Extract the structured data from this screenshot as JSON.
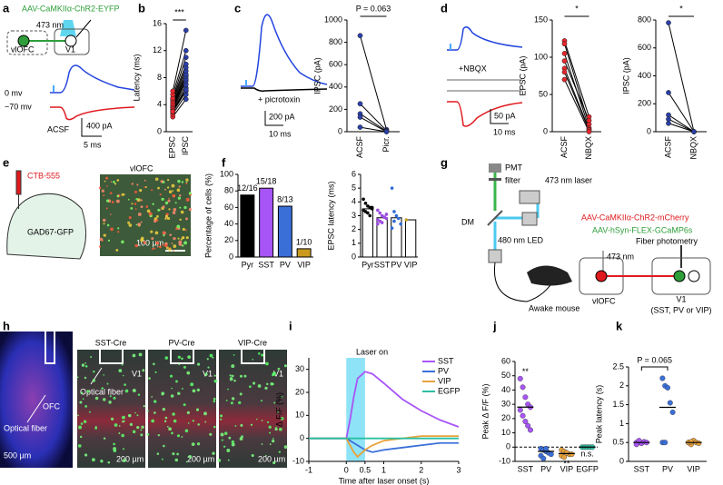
{
  "panel_labels": [
    "a",
    "b",
    "c",
    "d",
    "e",
    "f",
    "g",
    "h",
    "i",
    "j",
    "k"
  ],
  "figure_text": {
    "a": {
      "virus": "AAV-CaMKIIα-ChR2-EYFP",
      "light": "473 nm",
      "source": "vlOFC",
      "target": "V1",
      "v0": "0 mv",
      "v70": "−70 mv",
      "condition": "ACSF",
      "scale_y": "400 pA",
      "scale_x": "5 ms"
    },
    "c": {
      "drug": "+ picrotoxin",
      "scale_y": "200 pA",
      "scale_x": "10 ms"
    },
    "d": {
      "drug": "+NBQX",
      "scale_y": "50 pA",
      "scale_x": "10 ms"
    },
    "e": {
      "tracer": "CTB-555",
      "mouse": "GAD67-GFP",
      "region": "vlOFC",
      "scale": "100 µm"
    },
    "g": {
      "pmt": "PMT",
      "filter": "filter",
      "laser": "473 nm laser",
      "dm": "DM",
      "led": "480 nm LED",
      "mouse": "Awake mouse",
      "virus1": "AAV-CaMKIIα-ChR2-mCherry",
      "virus2": "AAV-hSyn-FLEX-GCaMP6s",
      "method": "Fiber photometry",
      "light": "473 nm",
      "source": "vlOFC",
      "target": "V1",
      "cells": "(SST, PV or VIP)"
    },
    "h": {
      "region": "OFC",
      "fiber": "Optical fiber",
      "scale_big": "500 µm",
      "lines": [
        "SST-Cre",
        "PV-Cre",
        "VIP-Cre"
      ],
      "area": [
        "V1",
        "V1",
        "V1"
      ],
      "fiber2": "Optical fiber",
      "scale_small": [
        "200 µm",
        "200 µm",
        "200 µm"
      ]
    }
  },
  "chart_data": [
    {
      "type": "line",
      "y_label": "Latency (ms)",
      "annotation": "***",
      "categories": [
        "EPSC",
        "IPSC"
      ],
      "marker_colors": [
        "#e8262b",
        "#2b3fa8"
      ],
      "line_color": "#000000",
      "ylim": [
        0,
        16
      ],
      "yticks": [
        0,
        4,
        8,
        12,
        16
      ],
      "series": [
        {
          "values": [
            2.2,
            4.8
          ]
        },
        {
          "values": [
            2.6,
            5.5
          ]
        },
        {
          "values": [
            2.9,
            6.0
          ]
        },
        {
          "values": [
            3.1,
            6.5
          ]
        },
        {
          "values": [
            3.3,
            7.0
          ]
        },
        {
          "values": [
            3.5,
            7.5
          ]
        },
        {
          "values": [
            3.6,
            7.8
          ]
        },
        {
          "values": [
            3.8,
            8.2
          ]
        },
        {
          "values": [
            4.0,
            8.5
          ]
        },
        {
          "values": [
            4.2,
            9.0
          ]
        },
        {
          "values": [
            4.5,
            9.5
          ]
        },
        {
          "values": [
            4.8,
            10.0
          ]
        },
        {
          "values": [
            5.0,
            11.0
          ]
        },
        {
          "values": [
            5.5,
            12.0
          ]
        },
        {
          "values": [
            6.0,
            15.0
          ]
        },
        {
          "values": [
            3.0,
            6.2
          ]
        }
      ]
    },
    {
      "type": "line",
      "y_label": "IPSC (pA)",
      "annotation": "P = 0.063",
      "categories": [
        "ACSF",
        "Picr."
      ],
      "marker_colors": [
        "#2b3fa8",
        "#2b3fa8"
      ],
      "line_color": "#000000",
      "ylim": [
        0,
        1000
      ],
      "yticks": [
        0,
        200,
        400,
        600,
        800,
        1000
      ],
      "series": [
        {
          "values": [
            860,
            20
          ]
        },
        {
          "values": [
            250,
            10
          ]
        },
        {
          "values": [
            160,
            5
          ]
        },
        {
          "values": [
            130,
            0
          ]
        },
        {
          "values": [
            40,
            0
          ]
        }
      ]
    },
    {
      "type": "line",
      "y_label": "EPSC (pA)",
      "annotation": "*",
      "categories": [
        "ACSF",
        "NBQX"
      ],
      "marker_colors": [
        "#e8262b",
        "#e8262b"
      ],
      "line_color": "#000000",
      "ylim": [
        0,
        150
      ],
      "yticks": [
        0,
        50,
        100,
        150
      ],
      "series": [
        {
          "values": [
            122,
            20
          ]
        },
        {
          "values": [
            118,
            10
          ]
        },
        {
          "values": [
            105,
            5
          ]
        },
        {
          "values": [
            95,
            15
          ]
        },
        {
          "values": [
            85,
            3
          ]
        },
        {
          "values": [
            80,
            2
          ]
        },
        {
          "values": [
            70,
            0
          ]
        }
      ]
    },
    {
      "type": "line",
      "y_label": "IPSC (pA)",
      "annotation": "*",
      "categories": [
        "ACSF",
        "NBQX"
      ],
      "marker_colors": [
        "#2b3fa8",
        "#2b3fa8"
      ],
      "line_color": "#000000",
      "ylim": [
        0,
        800
      ],
      "yticks": [
        0,
        200,
        400,
        600,
        800
      ],
      "series": [
        {
          "values": [
            780,
            0
          ]
        },
        {
          "values": [
            280,
            0
          ]
        },
        {
          "values": [
            120,
            0
          ]
        },
        {
          "values": [
            90,
            0
          ]
        },
        {
          "values": [
            60,
            0
          ]
        }
      ]
    },
    {
      "type": "bar",
      "y_label": "Percentage of cells (%)",
      "categories": [
        "Pyr",
        "SST",
        "PV",
        "VIP"
      ],
      "values": [
        75,
        83.3,
        61.5,
        10
      ],
      "colors": [
        "#000000",
        "#a855f7",
        "#3a6fd8",
        "#c99a1e"
      ],
      "annotations": [
        "12/16",
        "15/18",
        "8/13",
        "1/10"
      ],
      "ylim": [
        0,
        100
      ],
      "yticks": [
        0,
        20,
        40,
        60,
        80,
        100
      ]
    },
    {
      "type": "bar",
      "y_label": "EPSC latency (ms)",
      "categories": [
        "Pyr",
        "SST",
        "PV",
        "VIP"
      ],
      "values": [
        3.5,
        2.85,
        2.85,
        2.7
      ],
      "colors": [
        "#000000",
        "#9b4de0",
        "#2f6bd6",
        "#c8a02a"
      ],
      "points": [
        [
          4.2,
          3.9,
          3.7,
          3.6,
          3.5,
          3.4,
          3.3,
          3.2,
          3.0,
          3.6
        ],
        [
          3.4,
          3.2,
          3.0,
          2.9,
          2.8,
          2.7,
          2.6,
          2.5,
          2.9,
          3.1,
          2.4
        ],
        [
          5.0,
          3.3,
          3.0,
          2.8,
          2.4,
          2.1,
          2.6
        ],
        [
          2.7
        ]
      ],
      "ylim": [
        0,
        6
      ],
      "yticks": [
        0,
        1,
        2,
        3,
        4,
        5,
        6
      ]
    },
    {
      "type": "line",
      "y_label": "Δ F/F (%)",
      "x_label": "Time after laser onset (s)",
      "shade_label": "Laser on",
      "shade": [
        0,
        0.5
      ],
      "x": [
        -1,
        -0.5,
        0,
        0.1,
        0.2,
        0.3,
        0.5,
        0.7,
        1,
        1.5,
        2,
        2.5,
        3
      ],
      "series": [
        {
          "name": "SST",
          "color": "#a855f7",
          "values": [
            0,
            0,
            0,
            8,
            18,
            26,
            29,
            28,
            24,
            17,
            12,
            8,
            5
          ]
        },
        {
          "name": "PV",
          "color": "#3a6fd8",
          "values": [
            0,
            0,
            0,
            -1,
            -2,
            -3,
            -5,
            -6,
            -5,
            -4,
            -3,
            -2,
            -2
          ]
        },
        {
          "name": "VIP",
          "color": "#e8a23a",
          "values": [
            0,
            0,
            0,
            -3,
            -6,
            -8,
            -5,
            -3,
            -1,
            0,
            1,
            1,
            1
          ]
        },
        {
          "name": "EGFP",
          "color": "#2bbfa0",
          "values": [
            0,
            0,
            0,
            0,
            0,
            0,
            0,
            0,
            0,
            0,
            0,
            0,
            0
          ]
        }
      ],
      "xlim": [
        -1,
        3
      ],
      "xticks": [
        -1,
        0,
        0.5,
        1,
        2,
        3
      ],
      "ylim": [
        -10,
        35
      ],
      "yticks": [
        -10,
        0,
        10,
        20,
        30
      ]
    },
    {
      "type": "strip",
      "y_label": "Peak Δ F/F (%)",
      "categories": [
        "SST",
        "PV",
        "VIP",
        "EGFP"
      ],
      "colors": [
        "#a855f7",
        "#3a6fd8",
        "#e8a23a",
        "#2bbfa0"
      ],
      "points": [
        [
          48,
          42,
          35,
          30,
          28,
          26,
          22,
          18,
          15,
          12
        ],
        [
          -1,
          -2,
          -3,
          -4,
          -5,
          -6,
          -8,
          -1
        ],
        [
          -2,
          -3,
          -4,
          -5,
          -5,
          -6,
          -7,
          -4
        ],
        [
          0,
          0,
          0,
          0,
          0
        ]
      ],
      "means": [
        28,
        -3,
        -4.5,
        0
      ],
      "annotations": [
        "**",
        null,
        "**",
        "n.s."
      ],
      "ylim": [
        -10,
        60
      ],
      "yticks": [
        -10,
        0,
        10,
        20,
        30,
        40,
        50,
        60
      ]
    },
    {
      "type": "strip",
      "y_label": "Peak latency (s)",
      "annotation": "P = 0.065",
      "categories": [
        "SST",
        "PV",
        "VIP"
      ],
      "colors": [
        "#a855f7",
        "#3a6fd8",
        "#e8a23a"
      ],
      "points": [
        [
          0.5,
          0.5,
          0.48,
          0.52,
          0.5,
          0.45,
          0.55
        ],
        [
          2.2,
          2.0,
          1.95,
          1.55,
          1.3,
          0.5,
          0.5
        ],
        [
          0.5,
          0.45,
          0.55,
          0.5,
          0.48,
          0.5,
          0.52
        ]
      ],
      "means": [
        0.5,
        1.43,
        0.5
      ],
      "ylim": [
        0,
        2.5
      ],
      "yticks": [
        0,
        0.5,
        1,
        1.5,
        2,
        2.5
      ]
    }
  ]
}
